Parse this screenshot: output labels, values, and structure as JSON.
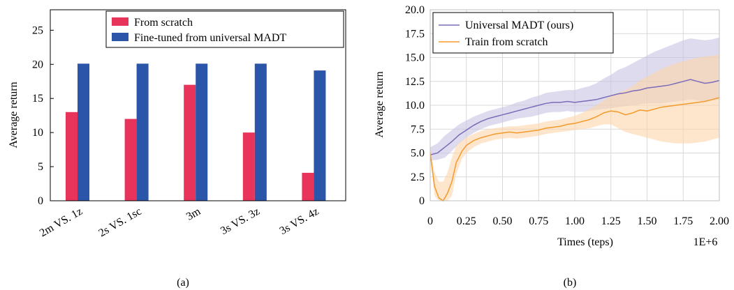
{
  "chart_data": [
    {
      "type": "bar",
      "caption": "(a)",
      "ylabel": "Average return",
      "xlabel": "",
      "ylim": [
        0,
        28
      ],
      "yticks": [
        0,
        5,
        10,
        15,
        20,
        25
      ],
      "grid": false,
      "legend_position": "top-right",
      "categories": [
        "2m VS. 1z",
        "2s VS. 1sc",
        "3m",
        "3s VS. 3z",
        "3s VS. 4z"
      ],
      "series": [
        {
          "name": "From scratch",
          "color": "#e8335a",
          "values": [
            13,
            12,
            17,
            10,
            4.1
          ]
        },
        {
          "name": "Fine-tuned from universal MADT",
          "color": "#2b55a8",
          "values": [
            20.1,
            20.1,
            20.1,
            20.1,
            19.1
          ]
        }
      ]
    },
    {
      "type": "line",
      "caption": "(b)",
      "ylabel": "Average return",
      "xlabel": "Times (teps)",
      "x_multiplier": "1E+6",
      "xlim": [
        0,
        2.0
      ],
      "ylim": [
        0,
        20.0
      ],
      "xticks": [
        "0",
        "0.25",
        "0.50",
        "0.75",
        "1.00",
        "1.25",
        "1.50",
        "1.75",
        "2.00"
      ],
      "yticks": [
        "0",
        "2.5",
        "5.0",
        "7.5",
        "10.0",
        "12.5",
        "15.0",
        "17.5",
        "20.0"
      ],
      "grid": true,
      "legend_position": "top-left",
      "series": [
        {
          "name": "Universal MADT (ours)",
          "color": "#7b6bb8",
          "band_color": "#c9c3e3",
          "x": [
            0,
            0.05,
            0.1,
            0.15,
            0.2,
            0.25,
            0.3,
            0.35,
            0.4,
            0.45,
            0.5,
            0.55,
            0.6,
            0.65,
            0.7,
            0.75,
            0.8,
            0.85,
            0.9,
            0.95,
            1.0,
            1.05,
            1.1,
            1.15,
            1.2,
            1.25,
            1.3,
            1.35,
            1.4,
            1.45,
            1.5,
            1.55,
            1.6,
            1.65,
            1.7,
            1.75,
            1.8,
            1.85,
            1.9,
            1.95,
            2.0
          ],
          "y": [
            4.8,
            5.0,
            5.6,
            6.2,
            6.9,
            7.4,
            7.9,
            8.3,
            8.6,
            8.8,
            9.0,
            9.2,
            9.4,
            9.6,
            9.8,
            10.0,
            10.2,
            10.3,
            10.3,
            10.4,
            10.3,
            10.4,
            10.5,
            10.6,
            10.8,
            11.0,
            11.2,
            11.3,
            11.5,
            11.6,
            11.8,
            11.9,
            12.0,
            12.1,
            12.3,
            12.5,
            12.7,
            12.5,
            12.3,
            12.4,
            12.6
          ],
          "lower": [
            4.2,
            4.3,
            4.5,
            5.2,
            6.0,
            6.6,
            7.1,
            7.5,
            7.8,
            8.0,
            8.2,
            8.4,
            8.6,
            8.7,
            8.8,
            9.0,
            9.2,
            9.3,
            9.3,
            9.4,
            9.3,
            9.3,
            9.4,
            9.5,
            9.6,
            9.7,
            9.8,
            9.9,
            10.0,
            10.1,
            10.2,
            10.2,
            10.2,
            10.3,
            10.4,
            10.5,
            10.6,
            10.5,
            10.4,
            10.5,
            10.6
          ],
          "upper": [
            5.6,
            6.0,
            6.8,
            7.4,
            8.0,
            8.4,
            8.8,
            9.1,
            9.4,
            9.6,
            9.8,
            10.0,
            10.3,
            10.5,
            10.8,
            11.0,
            11.3,
            11.4,
            11.5,
            11.6,
            11.6,
            11.8,
            12.0,
            12.3,
            12.8,
            13.2,
            13.7,
            14.0,
            14.4,
            14.8,
            15.2,
            15.6,
            15.9,
            16.2,
            16.5,
            16.8,
            17.0,
            16.9,
            16.8,
            16.9,
            17.1
          ]
        },
        {
          "name": "Train from scratch",
          "color": "#f39a2b",
          "band_color": "#fbd5aa",
          "x": [
            0,
            0.03,
            0.06,
            0.09,
            0.12,
            0.15,
            0.18,
            0.22,
            0.25,
            0.3,
            0.35,
            0.4,
            0.45,
            0.5,
            0.55,
            0.6,
            0.65,
            0.7,
            0.75,
            0.8,
            0.85,
            0.9,
            0.95,
            1.0,
            1.05,
            1.1,
            1.15,
            1.2,
            1.25,
            1.3,
            1.35,
            1.4,
            1.45,
            1.5,
            1.55,
            1.6,
            1.65,
            1.7,
            1.75,
            1.8,
            1.85,
            1.9,
            1.95,
            2.0
          ],
          "y": [
            5.0,
            1.5,
            0.3,
            0.0,
            0.8,
            2.0,
            4.0,
            5.2,
            5.8,
            6.3,
            6.6,
            6.8,
            7.0,
            7.1,
            7.2,
            7.1,
            7.2,
            7.3,
            7.4,
            7.6,
            7.7,
            7.8,
            8.0,
            8.1,
            8.3,
            8.5,
            8.8,
            9.2,
            9.4,
            9.3,
            9.0,
            9.2,
            9.5,
            9.4,
            9.6,
            9.8,
            9.9,
            10.0,
            10.1,
            10.2,
            10.3,
            10.4,
            10.6,
            10.8
          ],
          "lower": [
            4.6,
            0.5,
            0.0,
            0.0,
            0.0,
            0.5,
            2.8,
            4.4,
            5.0,
            5.6,
            6.0,
            6.2,
            6.4,
            6.5,
            6.6,
            6.5,
            6.6,
            6.7,
            6.8,
            7.0,
            7.1,
            7.2,
            7.3,
            7.4,
            7.5,
            7.6,
            7.8,
            8.0,
            8.0,
            7.6,
            7.2,
            7.0,
            6.8,
            6.6,
            6.4,
            6.2,
            6.1,
            6.0,
            6.0,
            6.0,
            6.1,
            6.2,
            6.4,
            6.6
          ],
          "upper": [
            5.4,
            3.0,
            2.0,
            2.0,
            3.0,
            4.5,
            5.8,
            6.3,
            6.6,
            7.0,
            7.3,
            7.5,
            7.6,
            7.7,
            7.8,
            7.8,
            7.9,
            8.0,
            8.1,
            8.3,
            8.4,
            8.5,
            8.7,
            8.9,
            9.2,
            9.6,
            10.0,
            10.5,
            11.0,
            11.3,
            11.6,
            12.0,
            12.6,
            13.0,
            13.4,
            13.8,
            14.1,
            14.4,
            14.6,
            14.8,
            15.0,
            15.1,
            15.2,
            15.3
          ]
        }
      ]
    }
  ]
}
